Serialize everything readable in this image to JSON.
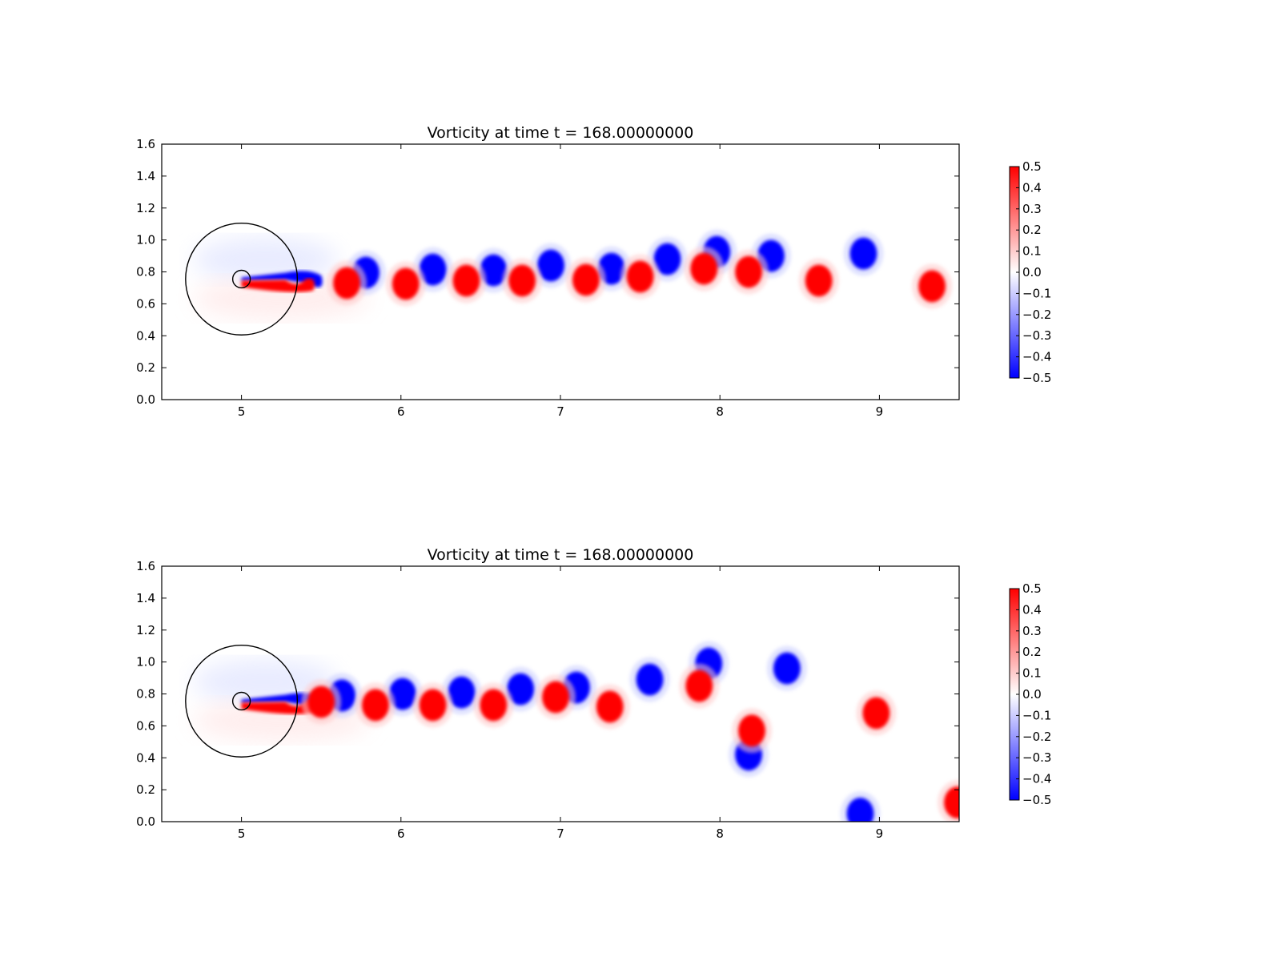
{
  "chart_data": [
    {
      "type": "heatmap",
      "title": "Vorticity at time t =   168.00000000",
      "xlabel": "",
      "ylabel": "",
      "xlim": [
        4.5,
        9.5
      ],
      "ylim": [
        0.0,
        1.6
      ],
      "xticks": [
        "5",
        "6",
        "7",
        "8",
        "9"
      ],
      "yticks": [
        "0.0",
        "0.2",
        "0.4",
        "0.6",
        "0.8",
        "1.0",
        "1.2",
        "1.4",
        "1.6"
      ],
      "colorbar": {
        "min": -0.5,
        "max": 0.5,
        "ticks": [
          "0.5",
          "0.4",
          "0.3",
          "0.2",
          "0.1",
          "0.0",
          "−0.1",
          "−0.2",
          "−0.3",
          "−0.4",
          "−0.5"
        ],
        "colormap": "bwr",
        "color_low": "#0000ff",
        "color_mid": "#ffffff",
        "color_high": "#ff0000"
      },
      "overlays": [
        {
          "shape": "circle",
          "center": [
            5.0,
            0.755
          ],
          "radius": 0.35
        },
        {
          "shape": "circle",
          "center": [
            5.0,
            0.755
          ],
          "radius": 0.055
        }
      ],
      "vortices": [
        {
          "x": 5.78,
          "y": 0.795,
          "value": -0.5
        },
        {
          "x": 6.2,
          "y": 0.815,
          "value": -0.5
        },
        {
          "x": 6.58,
          "y": 0.81,
          "value": -0.5
        },
        {
          "x": 6.94,
          "y": 0.84,
          "value": -0.5
        },
        {
          "x": 7.32,
          "y": 0.82,
          "value": -0.5
        },
        {
          "x": 7.67,
          "y": 0.88,
          "value": -0.5
        },
        {
          "x": 7.98,
          "y": 0.925,
          "value": -0.5
        },
        {
          "x": 8.32,
          "y": 0.9,
          "value": -0.5
        },
        {
          "x": 8.9,
          "y": 0.915,
          "value": -0.5
        },
        {
          "x": 5.66,
          "y": 0.73,
          "value": 0.5
        },
        {
          "x": 6.03,
          "y": 0.725,
          "value": 0.5
        },
        {
          "x": 6.41,
          "y": 0.745,
          "value": 0.5
        },
        {
          "x": 6.76,
          "y": 0.745,
          "value": 0.5
        },
        {
          "x": 7.16,
          "y": 0.75,
          "value": 0.5
        },
        {
          "x": 7.5,
          "y": 0.77,
          "value": 0.5
        },
        {
          "x": 7.9,
          "y": 0.82,
          "value": 0.5
        },
        {
          "x": 8.18,
          "y": 0.8,
          "value": 0.5
        },
        {
          "x": 8.62,
          "y": 0.745,
          "value": 0.5
        },
        {
          "x": 9.33,
          "y": 0.71,
          "value": 0.5
        }
      ]
    },
    {
      "type": "heatmap",
      "title": "Vorticity at time t =   168.00000000",
      "xlabel": "",
      "ylabel": "",
      "xlim": [
        4.5,
        9.5
      ],
      "ylim": [
        0.0,
        1.6
      ],
      "xticks": [
        "5",
        "6",
        "7",
        "8",
        "9"
      ],
      "yticks": [
        "0.0",
        "0.2",
        "0.4",
        "0.6",
        "0.8",
        "1.0",
        "1.2",
        "1.4",
        "1.6"
      ],
      "colorbar": {
        "min": -0.5,
        "max": 0.5,
        "ticks": [
          "0.5",
          "0.4",
          "0.3",
          "0.2",
          "0.1",
          "0.0",
          "−0.1",
          "−0.2",
          "−0.3",
          "−0.4",
          "−0.5"
        ],
        "colormap": "bwr",
        "color_low": "#0000ff",
        "color_mid": "#ffffff",
        "color_high": "#ff0000"
      },
      "overlays": [
        {
          "shape": "circle",
          "center": [
            5.0,
            0.755
          ],
          "radius": 0.35
        },
        {
          "shape": "circle",
          "center": [
            5.0,
            0.755
          ],
          "radius": 0.055
        }
      ],
      "vortices": [
        {
          "x": 5.63,
          "y": 0.79,
          "value": -0.5
        },
        {
          "x": 6.01,
          "y": 0.8,
          "value": -0.5
        },
        {
          "x": 6.38,
          "y": 0.81,
          "value": -0.5
        },
        {
          "x": 6.75,
          "y": 0.83,
          "value": -0.5
        },
        {
          "x": 7.1,
          "y": 0.84,
          "value": -0.5
        },
        {
          "x": 7.56,
          "y": 0.89,
          "value": -0.5
        },
        {
          "x": 7.93,
          "y": 0.99,
          "value": -0.5
        },
        {
          "x": 8.18,
          "y": 0.42,
          "value": -0.5
        },
        {
          "x": 8.42,
          "y": 0.96,
          "value": -0.5
        },
        {
          "x": 8.88,
          "y": 0.05,
          "value": -0.5
        },
        {
          "x": 5.5,
          "y": 0.75,
          "value": 0.5
        },
        {
          "x": 5.84,
          "y": 0.73,
          "value": 0.5
        },
        {
          "x": 6.2,
          "y": 0.73,
          "value": 0.5
        },
        {
          "x": 6.58,
          "y": 0.73,
          "value": 0.5
        },
        {
          "x": 6.97,
          "y": 0.78,
          "value": 0.5
        },
        {
          "x": 7.31,
          "y": 0.72,
          "value": 0.5
        },
        {
          "x": 7.87,
          "y": 0.85,
          "value": 0.5
        },
        {
          "x": 8.2,
          "y": 0.57,
          "value": 0.5
        },
        {
          "x": 8.98,
          "y": 0.68,
          "value": 0.5
        },
        {
          "x": 9.49,
          "y": 0.12,
          "value": 0.5
        }
      ]
    }
  ]
}
